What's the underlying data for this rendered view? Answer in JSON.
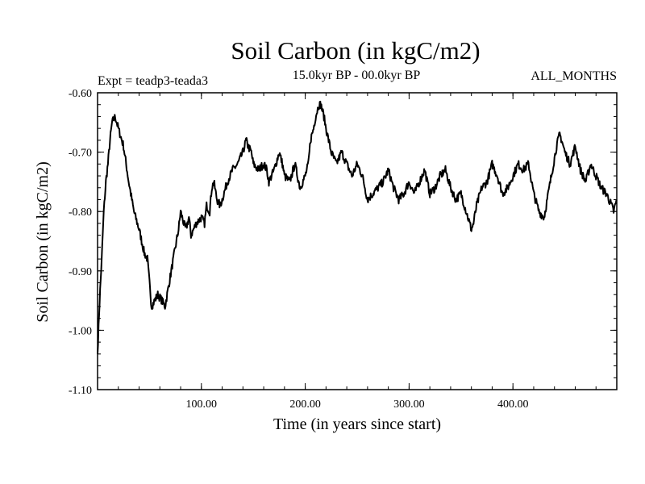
{
  "chart_data": {
    "type": "line",
    "title": "Soil Carbon (in kgC/m2)",
    "subtitle": "15.0kyr BP - 00.0kyr BP",
    "left_note": "Expt = teadp3-teada3",
    "right_note": "ALL_MONTHS",
    "xlabel": "Time (in years since start)",
    "ylabel": "Soil Carbon (in kgC/m2)",
    "xlim": [
      0,
      500
    ],
    "ylim": [
      -1.1,
      -0.6
    ],
    "x_ticks": [
      100,
      200,
      300,
      400
    ],
    "x_tick_labels": [
      "100.00",
      "200.00",
      "300.00",
      "400.00"
    ],
    "y_ticks": [
      -0.6,
      -0.7,
      -0.8,
      -0.9,
      -1.0,
      -1.1
    ],
    "y_tick_labels": [
      "-0.60",
      "-0.70",
      "-0.80",
      "-0.90",
      "-1.00",
      "-1.10"
    ],
    "grid": false,
    "series": [
      {
        "name": "teadp3-teada3",
        "color": "#000000",
        "x": [
          0,
          2,
          4,
          6,
          8,
          10,
          12,
          14,
          17,
          20,
          25,
          30,
          35,
          40,
          45,
          48,
          50,
          52,
          55,
          58,
          62,
          65,
          68,
          72,
          75,
          78,
          80,
          83,
          85,
          88,
          90,
          95,
          100,
          103,
          105,
          108,
          110,
          112,
          115,
          118,
          120,
          125,
          130,
          135,
          140,
          143,
          145,
          148,
          150,
          155,
          160,
          163,
          165,
          170,
          175,
          178,
          180,
          185,
          190,
          195,
          200,
          203,
          205,
          208,
          210,
          213,
          215,
          218,
          220,
          225,
          230,
          235,
          240,
          245,
          250,
          255,
          260,
          265,
          270,
          275,
          280,
          285,
          290,
          295,
          300,
          305,
          310,
          315,
          320,
          325,
          330,
          335,
          340,
          345,
          350,
          355,
          360,
          362,
          365,
          370,
          375,
          380,
          385,
          390,
          395,
          400,
          405,
          410,
          415,
          420,
          425,
          430,
          435,
          440,
          442,
          445,
          447,
          450,
          455,
          460,
          465,
          470,
          475,
          480,
          485,
          490,
          495,
          497,
          500
        ],
        "values": [
          -1.04,
          -0.95,
          -0.88,
          -0.8,
          -0.75,
          -0.72,
          -0.68,
          -0.65,
          -0.64,
          -0.66,
          -0.69,
          -0.75,
          -0.8,
          -0.83,
          -0.87,
          -0.88,
          -0.92,
          -0.96,
          -0.95,
          -0.94,
          -0.95,
          -0.96,
          -0.93,
          -0.89,
          -0.86,
          -0.83,
          -0.8,
          -0.82,
          -0.83,
          -0.81,
          -0.84,
          -0.82,
          -0.81,
          -0.82,
          -0.79,
          -0.8,
          -0.76,
          -0.75,
          -0.78,
          -0.79,
          -0.78,
          -0.75,
          -0.73,
          -0.72,
          -0.7,
          -0.68,
          -0.69,
          -0.7,
          -0.72,
          -0.73,
          -0.72,
          -0.73,
          -0.75,
          -0.73,
          -0.7,
          -0.72,
          -0.74,
          -0.75,
          -0.72,
          -0.76,
          -0.74,
          -0.72,
          -0.68,
          -0.66,
          -0.64,
          -0.62,
          -0.62,
          -0.64,
          -0.66,
          -0.7,
          -0.72,
          -0.7,
          -0.72,
          -0.74,
          -0.72,
          -0.74,
          -0.78,
          -0.77,
          -0.76,
          -0.75,
          -0.73,
          -0.76,
          -0.78,
          -0.77,
          -0.75,
          -0.77,
          -0.75,
          -0.73,
          -0.77,
          -0.76,
          -0.74,
          -0.73,
          -0.76,
          -0.78,
          -0.77,
          -0.8,
          -0.83,
          -0.82,
          -0.79,
          -0.76,
          -0.75,
          -0.72,
          -0.74,
          -0.77,
          -0.76,
          -0.74,
          -0.72,
          -0.73,
          -0.72,
          -0.77,
          -0.8,
          -0.81,
          -0.76,
          -0.71,
          -0.69,
          -0.67,
          -0.68,
          -0.7,
          -0.72,
          -0.69,
          -0.73,
          -0.75,
          -0.72,
          -0.74,
          -0.76,
          -0.77,
          -0.79,
          -0.8,
          -0.78
        ]
      }
    ]
  }
}
